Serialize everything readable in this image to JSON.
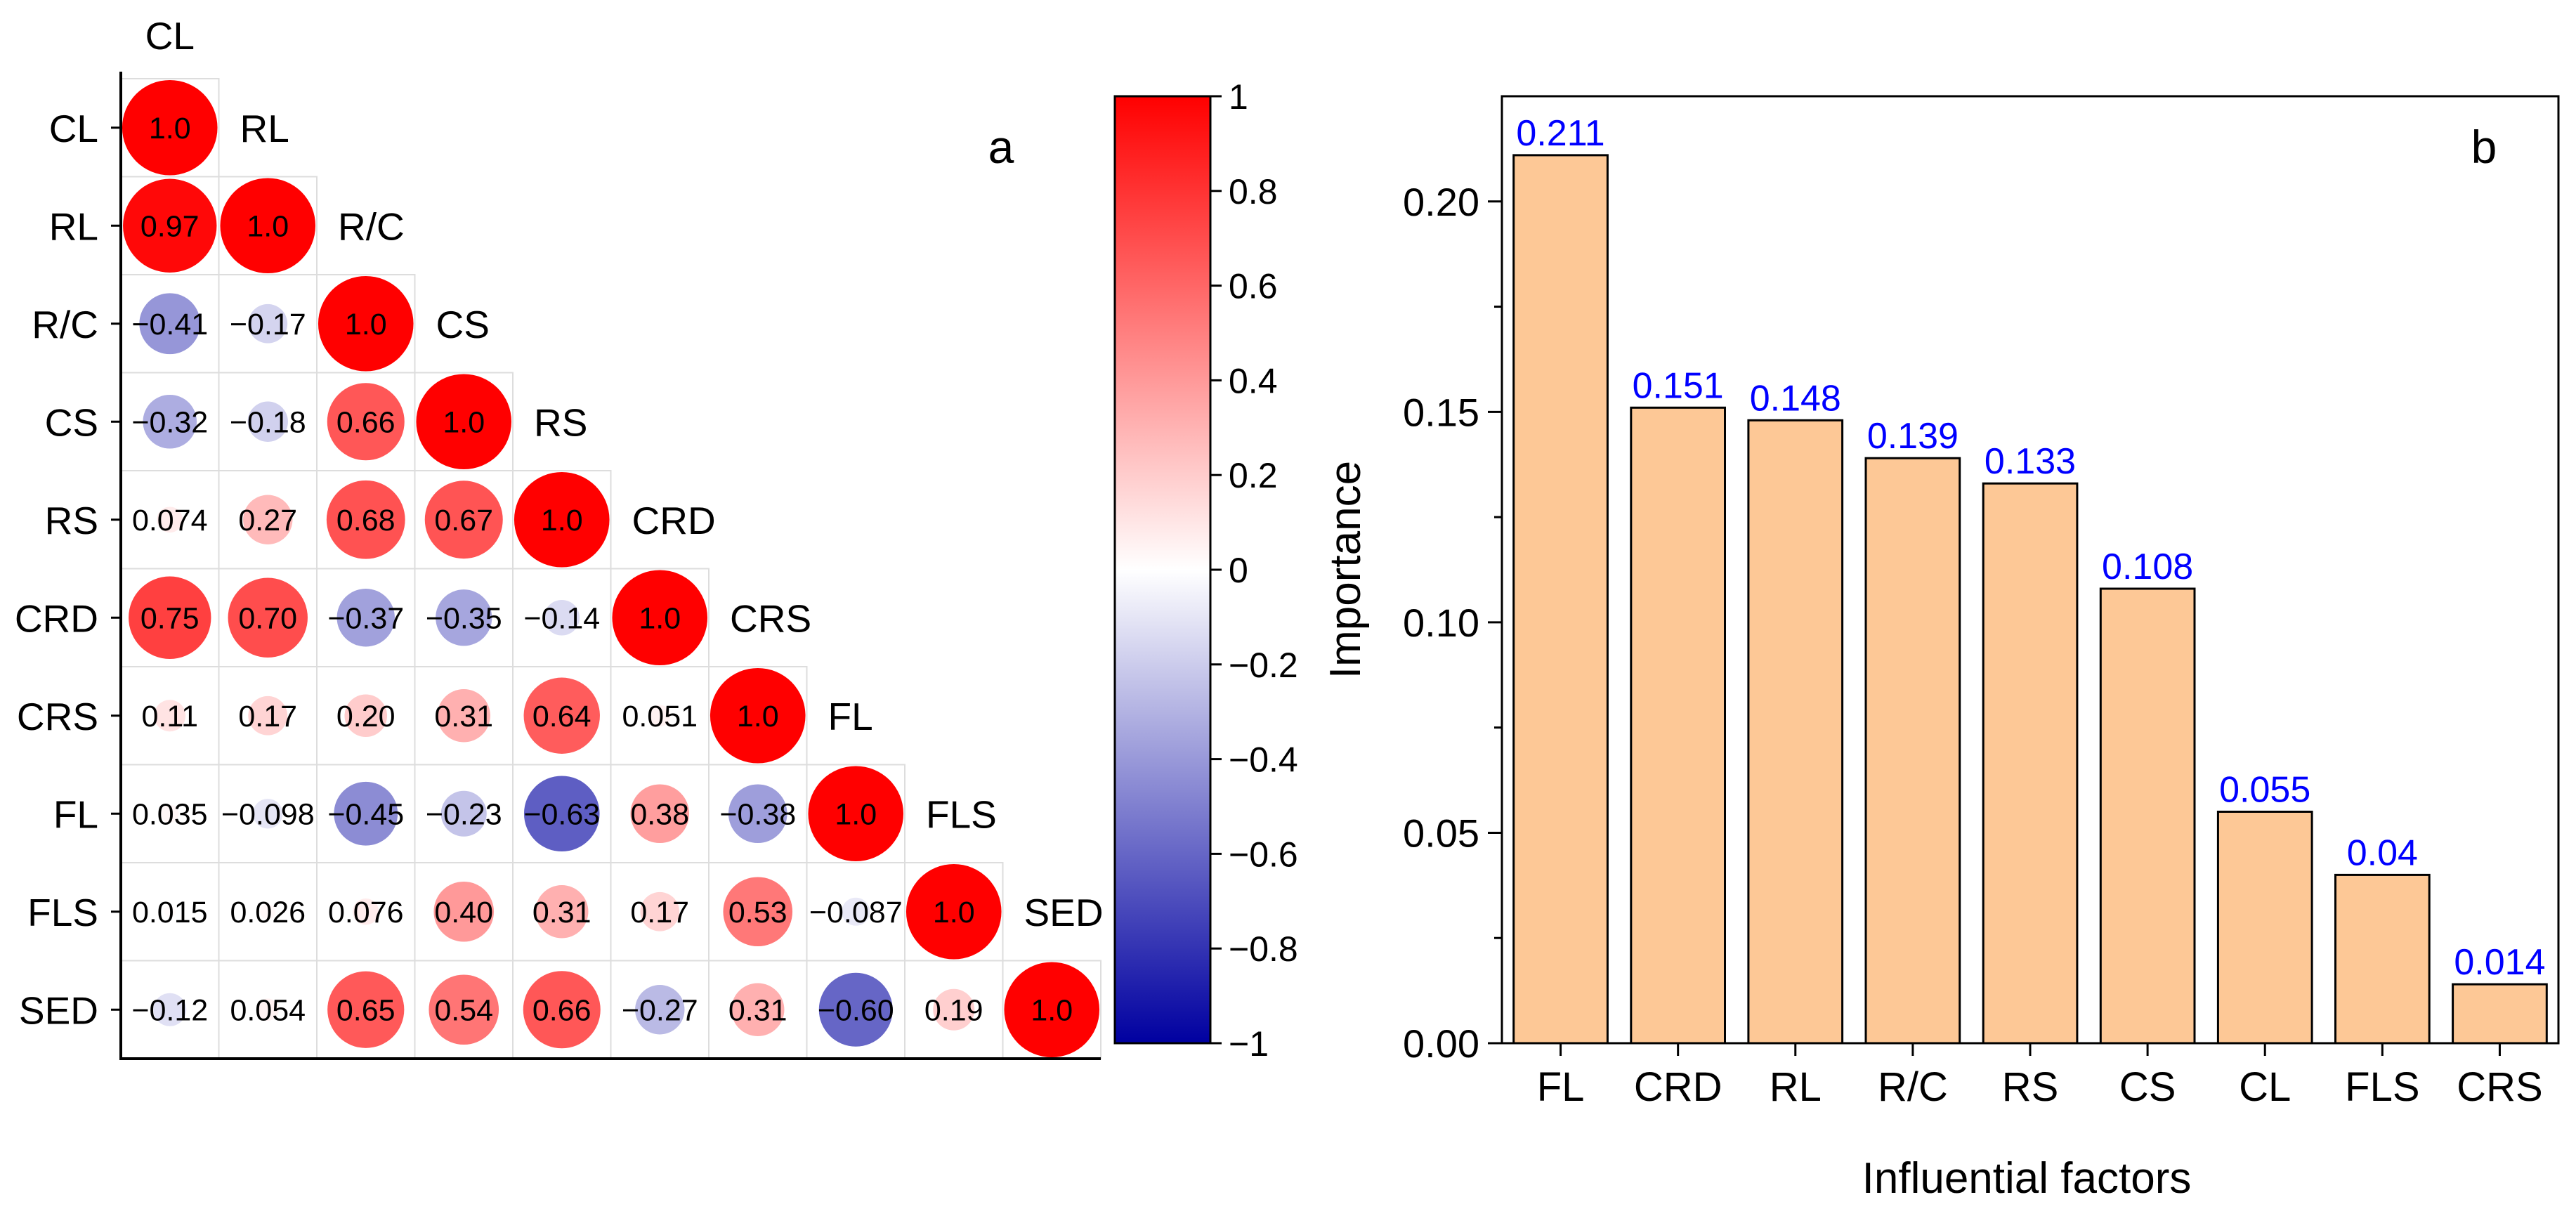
{
  "chart_data": [
    {
      "type": "heatmap",
      "panel_label": "a",
      "variables": [
        "CL",
        "RL",
        "R/C",
        "CS",
        "RS",
        "CRD",
        "CRS",
        "FL",
        "FLS",
        "SED"
      ],
      "matrix": [
        [
          1.0
        ],
        [
          0.97,
          1.0
        ],
        [
          -0.41,
          -0.17,
          1.0
        ],
        [
          -0.32,
          -0.18,
          0.66,
          1.0
        ],
        [
          0.074,
          0.27,
          0.68,
          0.67,
          1.0
        ],
        [
          0.75,
          0.7,
          -0.37,
          -0.35,
          -0.14,
          1.0
        ],
        [
          0.11,
          0.17,
          0.2,
          0.31,
          0.64,
          0.051,
          1.0
        ],
        [
          0.035,
          -0.098,
          -0.45,
          -0.23,
          -0.63,
          0.38,
          -0.38,
          1.0
        ],
        [
          0.015,
          0.026,
          0.076,
          0.4,
          0.31,
          0.17,
          0.53,
          -0.087,
          1.0
        ],
        [
          -0.12,
          0.054,
          0.65,
          0.54,
          0.66,
          -0.27,
          0.31,
          -0.6,
          0.19,
          1.0
        ]
      ],
      "labels": [
        [
          "1.0"
        ],
        [
          "0.97",
          "1.0"
        ],
        [
          "−0.41",
          "−0.17",
          "1.0"
        ],
        [
          "−0.32",
          "−0.18",
          "0.66",
          "1.0"
        ],
        [
          "0.074",
          "0.27",
          "0.68",
          "0.67",
          "1.0"
        ],
        [
          "0.75",
          "0.70",
          "−0.37",
          "−0.35",
          "−0.14",
          "1.0"
        ],
        [
          "0.11",
          "0.17",
          "0.20",
          "0.31",
          "0.64",
          "0.051",
          "1.0"
        ],
        [
          "0.035",
          "−0.098",
          "−0.45",
          "−0.23",
          "−0.63",
          "0.38",
          "−0.38",
          "1.0"
        ],
        [
          "0.015",
          "0.026",
          "0.076",
          "0.40",
          "0.31",
          "0.17",
          "0.53",
          "−0.087",
          "1.0"
        ],
        [
          "−0.12",
          "0.054",
          "0.65",
          "0.54",
          "0.66",
          "−0.27",
          "0.31",
          "−0.60",
          "0.19",
          "1.0"
        ]
      ],
      "colorbar": {
        "range": [
          -1,
          1
        ],
        "ticks": [
          1,
          0.8,
          0.6,
          0.4,
          0.2,
          0,
          -0.2,
          -0.4,
          -0.6,
          -0.8,
          -1
        ],
        "tick_labels": [
          "1",
          "0.8",
          "0.6",
          "0.4",
          "0.2",
          "0",
          "−0.2",
          "−0.4",
          "−0.6",
          "−0.8",
          "−1"
        ],
        "colors": {
          "negative": "#0000a0",
          "zero": "#ffffff",
          "positive": "#ff0000"
        }
      }
    },
    {
      "type": "bar",
      "panel_label": "b",
      "categories": [
        "FL",
        "CRD",
        "RL",
        "R/C",
        "RS",
        "CS",
        "CL",
        "FLS",
        "CRS"
      ],
      "values": [
        0.211,
        0.151,
        0.148,
        0.139,
        0.133,
        0.108,
        0.055,
        0.04,
        0.014
      ],
      "value_labels": [
        "0.211",
        "0.151",
        "0.148",
        "0.139",
        "0.133",
        "0.108",
        "0.055",
        "0.04",
        "0.014"
      ],
      "xlabel": "Influential factors",
      "ylabel": "Importance",
      "ylim": [
        0,
        0.225
      ],
      "yticks": [
        0,
        0.05,
        0.1,
        0.15,
        0.2
      ],
      "ytick_labels": [
        "0.00",
        "0.05",
        "0.10",
        "0.15",
        "0.20"
      ],
      "colors": {
        "bar_fill": "#fdc896",
        "bar_edge": "#000000",
        "value_label": "#0000ff"
      }
    }
  ]
}
